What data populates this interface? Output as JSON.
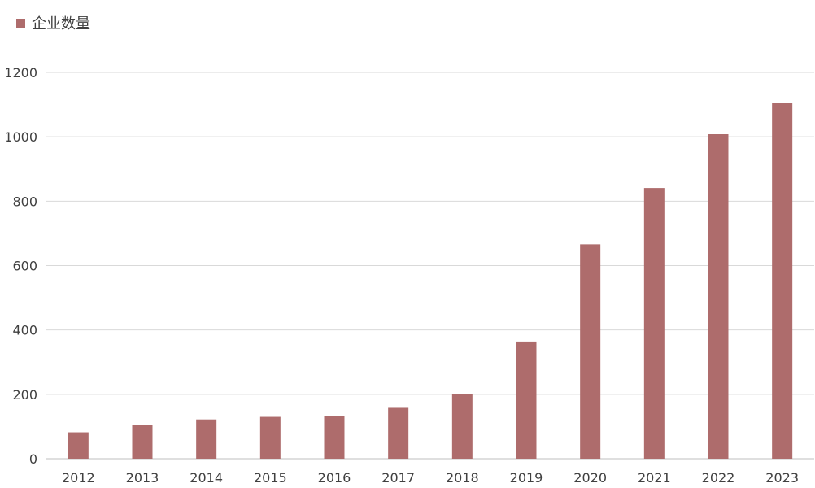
{
  "chart_data": {
    "type": "bar",
    "categories": [
      "2012",
      "2013",
      "2014",
      "2015",
      "2016",
      "2017",
      "2018",
      "2019",
      "2020",
      "2021",
      "2022",
      "2023"
    ],
    "series": [
      {
        "name": "企业数量",
        "values": [
          82,
          104,
          122,
          130,
          132,
          158,
          200,
          364,
          666,
          841,
          1008,
          1104
        ]
      }
    ],
    "title": "",
    "xlabel": "",
    "ylabel": "",
    "ylim": [
      0,
      1200
    ],
    "yticks": [
      "0",
      "200",
      "400",
      "600",
      "800",
      "1000",
      "1200"
    ],
    "grid": true,
    "legend_position": "top-left",
    "colors": {
      "bar": "#ae6c6c",
      "grid": "#d9d9d9",
      "axis": "#bfbfbf",
      "tick_text": "#404040"
    }
  }
}
